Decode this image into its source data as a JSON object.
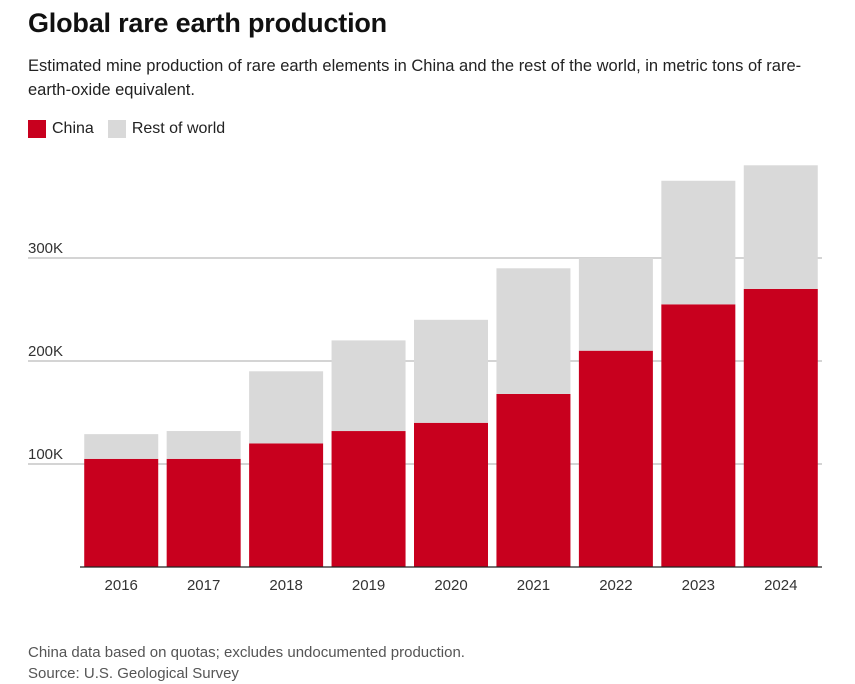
{
  "title": "Global rare earth production",
  "subtitle": "Estimated mine production of rare earth elements in China and the rest of the world, in metric tons of rare-earth-oxide equivalent.",
  "legend": {
    "china_label": "China",
    "row_label": "Rest of world"
  },
  "colors": {
    "china": "#c8001e",
    "rest_of_world": "#d9d9d9",
    "grid": "#aaaaaa",
    "axis": "#222222"
  },
  "footnote": {
    "note": "China data based on quotas; excludes undocumented production.",
    "source": "Source: U.S. Geological Survey"
  },
  "chart_data": {
    "type": "bar",
    "stacked": true,
    "title": "Global rare earth production",
    "xlabel": "",
    "ylabel": "",
    "categories": [
      "2016",
      "2017",
      "2018",
      "2019",
      "2020",
      "2021",
      "2022",
      "2023",
      "2024"
    ],
    "series": [
      {
        "name": "China",
        "values": [
          105000,
          105000,
          120000,
          132000,
          140000,
          168000,
          210000,
          255000,
          270000
        ]
      },
      {
        "name": "Rest of world",
        "values": [
          24000,
          27000,
          70000,
          88000,
          100000,
          122000,
          90000,
          120000,
          120000
        ]
      }
    ],
    "ylim": [
      0,
      390000
    ],
    "yticks": [
      100000,
      200000,
      300000
    ],
    "ytick_labels": [
      "100K",
      "200K",
      "300K"
    ],
    "grid": true,
    "legend": "top-left"
  }
}
